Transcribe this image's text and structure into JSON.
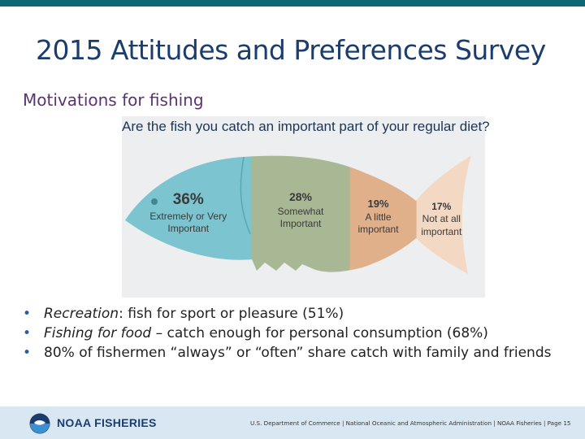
{
  "slide": {
    "title": "2015 Attitudes and Preferences Survey",
    "subtitle": "Motivations for fishing"
  },
  "chart_data": {
    "type": "pie",
    "title": "Are the fish you catch an important part of your regular diet?",
    "categories": [
      "Extremely or Very Important",
      "Somewhat Important",
      "A little important",
      "Not at all important"
    ],
    "values": [
      36,
      28,
      19,
      17
    ],
    "unit": "%",
    "segments": [
      {
        "pct": "36%",
        "line1": "Extremely or Very",
        "line2": "Important",
        "line3": "",
        "color": "#7cc4cf"
      },
      {
        "pct": "28%",
        "line1": "Somewhat",
        "line2": "Important",
        "line3": "",
        "color": "#a9b894"
      },
      {
        "pct": "19%",
        "line1": "A little",
        "line2": "important",
        "line3": "",
        "color": "#e0b08b"
      },
      {
        "pct": "17%",
        "line1": "Not at all",
        "line2": "important",
        "line3": "",
        "color": "#f3d9c3"
      }
    ]
  },
  "bullets": {
    "b1_em": "Recreation",
    "b1_rest": ": fish for sport or pleasure (51%)",
    "b2_em": "Fishing for food",
    "b2_rest": " – catch enough for personal consumption (68%)",
    "b3_text": "80% of fishermen “always” or “often” share catch with family and friends"
  },
  "footer": {
    "logo_text": "NOAA FISHERIES",
    "credit": "U.S. Department of Commerce | National Oceanic and Atmospheric Administration | NOAA Fisheries | Page 15"
  },
  "colors": {
    "title": "#1b3d6e",
    "subtitle": "#5a3472",
    "top_bar": "#0f6675",
    "footer_bg": "#d9e7f3"
  }
}
